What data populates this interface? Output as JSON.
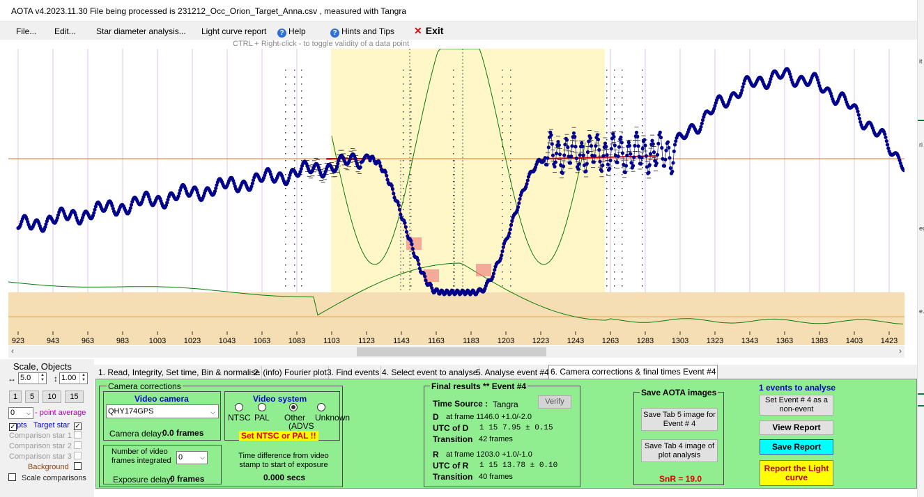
{
  "window": {
    "title": "AOTA v4.2023.11.30   File being processed is  231212_Occ_Orion_Target_Anna.csv ,  measured with Tangra"
  },
  "menu": {
    "file": "File...",
    "edit": "Edit...",
    "star_diameter": "Star diameter analysis...",
    "light_curve_report": "Light curve report",
    "help": "Help",
    "hints": "Hints and Tips",
    "exit": "Exit"
  },
  "hint": "CTRL + Right-click   -   to toggle validity of a data point",
  "plot": {
    "x_ticks": [
      "923",
      "943",
      "963",
      "983",
      "1003",
      "1023",
      "1043",
      "1063",
      "1083",
      "1103",
      "1123",
      "1143",
      "1163",
      "1183",
      "1203",
      "1223",
      "1243",
      "1263",
      "1283",
      "1303",
      "1323",
      "1343",
      "1363",
      "1383",
      "1403",
      "1423"
    ],
    "colors": {
      "data": "#00008b",
      "model": "#dd0000",
      "guide": "#0b7a0b",
      "highlight": "#fff7c8",
      "band": "#f5deb3",
      "baseline": "#e07020"
    }
  },
  "left_panel": {
    "scale_title": "Scale,  Objects",
    "scale_value": "5.0",
    "vscale_value": "1.00",
    "zoom_buttons": [
      "1",
      "5",
      "10",
      "15"
    ],
    "point_average_value": "0",
    "point_average_label": "- point average",
    "pts_label": "pts",
    "target_star": "Target star",
    "comparison1": "Comparison star 1",
    "comparison2": "Comparison star 2",
    "comparison3": "Comparison star 3",
    "background": "Background",
    "scale_comparisons": "Scale comparisons"
  },
  "tabs": [
    "1.  Read, Integrity, Set time, Bin & normalise",
    "2. (info)  Fourier plot",
    "3. Find events",
    "4. Select event to analyse",
    "5. Analyse event #4",
    "6. Camera corrections & final times Event #4"
  ],
  "camera": {
    "group_title": "Camera corrections",
    "video_camera_title": "Video camera",
    "camera_model": "QHY174GPS",
    "camera_delay_label": "Camera delay:",
    "camera_delay_value": "0.0 frames",
    "video_system_title": "Video system",
    "radio_ntsc": "NTSC",
    "radio_pal": "PAL",
    "radio_other": "Other",
    "radio_other_sub": "(ADVS",
    "radio_unknown": "Unknown",
    "set_ntsc_warning": "Set NTSC or PAL !!",
    "frames_integrated_label": "Number of video frames integrated",
    "frames_integrated_value": "0",
    "exposure_delay_label": "Exposure delay:",
    "exposure_delay_value": "0 frames",
    "time_diff_label": "Time difference from video stamp to start of exposure",
    "time_diff_value": "0.000 secs"
  },
  "final": {
    "title": "Final results   **   Event #4",
    "time_source_label": "Time Source :",
    "time_source_value": "Tangra",
    "verify": "Verify",
    "d_label": "D",
    "d_frame": "at frame 1146.0  +1.0/-2.0",
    "utc_d_label": "UTC of D",
    "utc_d_value": "1 15  7.95  ± 0.15",
    "transition_label": "Transition",
    "d_transition": "42 frames",
    "r_label": "R",
    "r_frame": "at frame 1203.0  +1.0/-1.0",
    "utc_r_label": "UTC of R",
    "utc_r_value": "1 15 13.78  ± 0.10",
    "r_transition": "40 frames"
  },
  "save_images": {
    "title": "Save AOTA images",
    "btn_tab5": "Save Tab 5 image for Event # 4",
    "btn_tab4": "Save Tab 4 image of plot analysis",
    "snr": "SnR = 19.0"
  },
  "events": {
    "count": "1 events to analyse",
    "set_event": "Set Event # 4 as a non-event",
    "view_report": "View Report",
    "save_report": "Save Report",
    "report_lc": "Report the Light curve"
  },
  "right_strip_fragments": [
    "it",
    "ri",
    "ec",
    "e."
  ]
}
